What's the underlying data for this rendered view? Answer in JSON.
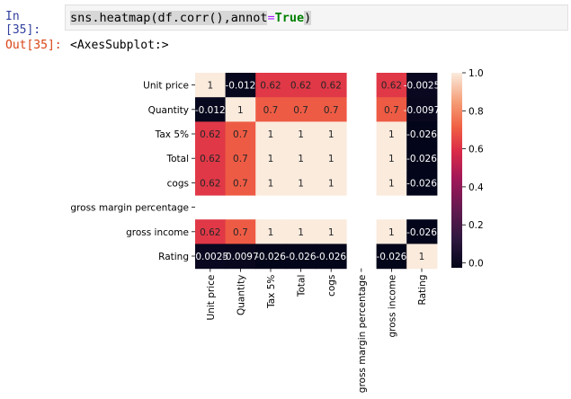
{
  "cell": {
    "in_prompt": "In [35]:",
    "code_prefix": "sns.heatmap(df.corr(),annot",
    "code_op": "=",
    "code_keyword": "True",
    "code_suffix": ")",
    "out_prompt": "Out[35]:",
    "output_text": "<AxesSubplot:>"
  },
  "chart_data": {
    "type": "heatmap",
    "title": "",
    "xlabel": "",
    "ylabel": "",
    "labels": [
      "Unit price",
      "Quantity",
      "Tax 5%",
      "Total",
      "cogs",
      "gross margin percentage",
      "gross income",
      "Rating"
    ],
    "values": [
      [
        1,
        -0.012,
        0.62,
        0.62,
        0.62,
        null,
        0.62,
        -0.0025
      ],
      [
        -0.012,
        1,
        0.7,
        0.7,
        0.7,
        null,
        0.7,
        -0.0097
      ],
      [
        0.62,
        0.7,
        1,
        1,
        1,
        null,
        1,
        -0.026
      ],
      [
        0.62,
        0.7,
        1,
        1,
        1,
        null,
        1,
        -0.026
      ],
      [
        0.62,
        0.7,
        1,
        1,
        1,
        null,
        1,
        -0.026
      ],
      [
        null,
        null,
        null,
        null,
        null,
        null,
        null,
        null
      ],
      [
        0.62,
        0.7,
        1,
        1,
        1,
        null,
        1,
        -0.026
      ],
      [
        -0.0025,
        -0.0097,
        -0.026,
        -0.026,
        -0.026,
        null,
        -0.026,
        1
      ]
    ],
    "annotations": [
      [
        "1",
        "-0.012",
        "0.62",
        "0.62",
        "0.62",
        "",
        "0.62",
        "-0.0025"
      ],
      [
        "-0.012",
        "1",
        "0.7",
        "0.7",
        "0.7",
        "",
        "0.7",
        "-0.0097"
      ],
      [
        "0.62",
        "0.7",
        "1",
        "1",
        "1",
        "",
        "1",
        "-0.026"
      ],
      [
        "0.62",
        "0.7",
        "1",
        "1",
        "1",
        "",
        "1",
        "-0.026"
      ],
      [
        "0.62",
        "0.7",
        "1",
        "1",
        "1",
        "",
        "1",
        "-0.026"
      ],
      [
        "",
        "",
        "",
        "",
        "",
        "",
        "",
        ""
      ],
      [
        "0.62",
        "0.7",
        "1",
        "1",
        "1",
        "",
        "1",
        "-0.026"
      ],
      [
        "-0.0025",
        "-0.0097",
        "-0.026",
        "-0.026",
        "-0.026",
        "",
        "-0.026",
        "1"
      ]
    ],
    "colorbar": {
      "range": [
        -0.026,
        1
      ],
      "ticks": [
        "0.0",
        "0.2",
        "0.4",
        "0.6",
        "0.8",
        "1.0"
      ],
      "tick_values": [
        0,
        0.2,
        0.4,
        0.6,
        0.8,
        1.0
      ],
      "colormap": "rocket"
    }
  }
}
